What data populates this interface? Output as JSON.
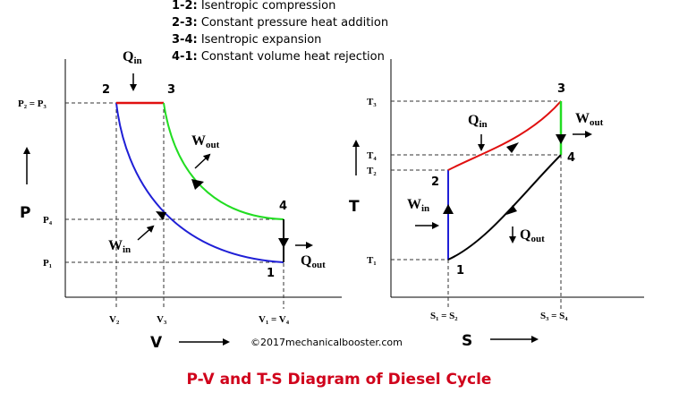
{
  "legend": [
    {
      "key": "1-2:",
      "text": "Isentropic compression"
    },
    {
      "key": "2-3:",
      "text": "Constant pressure heat addition"
    },
    {
      "key": "3-4:",
      "text": "Isentropic expansion"
    },
    {
      "key": "4-1:",
      "text": "Constant volume heat rejection"
    }
  ],
  "pv": {
    "y_axis": "P",
    "x_axis": "V",
    "p_labels": {
      "p23": "P₂ = P₃",
      "p4": "P₄",
      "p1": "P₁"
    },
    "v_labels": {
      "v2": "V₂",
      "v3": "V₃",
      "v14": "V₁ = V₄"
    },
    "points": {
      "p1": "1",
      "p2": "2",
      "p3": "3",
      "p4": "4"
    },
    "q_in": {
      "base": "Q",
      "sub": "in"
    },
    "q_out": {
      "base": "Q",
      "sub": "out"
    },
    "w_out": {
      "base": "W",
      "sub": "out"
    },
    "w_in": {
      "base": "W",
      "sub": "in"
    }
  },
  "ts": {
    "y_axis": "T",
    "x_axis": "S",
    "t_labels": {
      "t3": "T₃",
      "t4": "T₄",
      "t2": "T₂",
      "t1": "T₁"
    },
    "s_labels": {
      "s12": "S₁ = S₂",
      "s34": "S₃ = S₄"
    },
    "points": {
      "p1": "1",
      "p2": "2",
      "p3": "3",
      "p4": "4"
    },
    "q_in": {
      "base": "Q",
      "sub": "in"
    },
    "q_out": {
      "base": "Q",
      "sub": "out"
    },
    "w_out": {
      "base": "W",
      "sub": "out"
    },
    "w_in": {
      "base": "W",
      "sub": "in"
    }
  },
  "copyright": "©2017mechanicalbooster.com",
  "title": "P-V and T-S Diagram of Diesel Cycle",
  "colors": {
    "compression": "#1f1fd6",
    "heat_addition": "#e01010",
    "expansion": "#22dd22",
    "heat_rejection": "#000000",
    "title": "#d0021b"
  }
}
